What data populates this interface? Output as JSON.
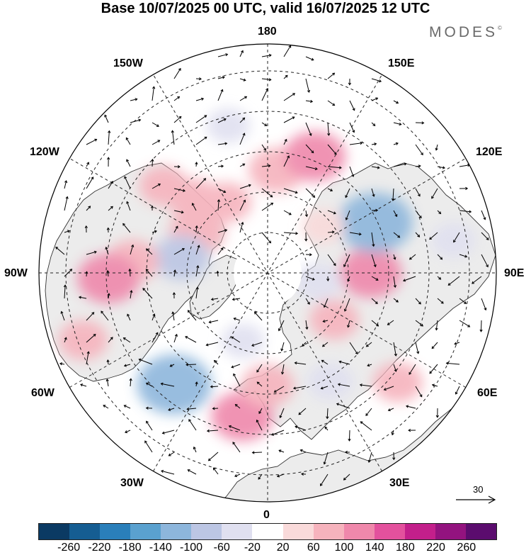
{
  "title": "Base 10/07/2025 00 UTC, valid 16/07/2025 12 UTC",
  "brand": "MODES",
  "brand_mark": "©",
  "longitude_labels": {
    "top": "180",
    "bottom": "0",
    "left": "90W",
    "right": "90E",
    "nw_upper": "150W",
    "nw_lower": "120W",
    "ne_upper": "150E",
    "ne_lower": "120E",
    "sw_upper": "60W",
    "sw_lower": "30W",
    "se_upper": "60E",
    "se_lower": "30E"
  },
  "reference_vector": {
    "label": "30"
  },
  "colorbar": {
    "colors": [
      "#0b3a63",
      "#155d92",
      "#2a7fba",
      "#5aa1cf",
      "#8db6dc",
      "#bcc6e4",
      "#e0e0f0",
      "#ffffff",
      "#f9dada",
      "#f6b3bd",
      "#ef88ab",
      "#e3519d",
      "#c31f8b",
      "#93137f",
      "#5b0c6e"
    ],
    "ticks": [
      "-260",
      "-220",
      "-180",
      "-140",
      "-100",
      "-60",
      "-20",
      "20",
      "60",
      "100",
      "140",
      "180",
      "220",
      "260"
    ]
  },
  "anomalies": [
    {
      "lon": 175,
      "lat": 55,
      "value": 80
    },
    {
      "lon": 158,
      "lat": 48,
      "value": 100
    },
    {
      "lon": -150,
      "lat": 62,
      "value": 60
    },
    {
      "lon": -135,
      "lat": 55,
      "value": 70
    },
    {
      "lon": -120,
      "lat": 62,
      "value": 80
    },
    {
      "lon": -130,
      "lat": 45,
      "value": 60
    },
    {
      "lon": -100,
      "lat": 60,
      "value": -80
    },
    {
      "lon": -95,
      "lat": 45,
      "value": 70
    },
    {
      "lon": -88,
      "lat": 38,
      "value": 100
    },
    {
      "lon": -70,
      "lat": 28,
      "value": 60
    },
    {
      "lon": -40,
      "lat": 42,
      "value": -140
    },
    {
      "lon": -10,
      "lat": 42,
      "value": 100
    },
    {
      "lon": 0,
      "lat": 52,
      "value": 70
    },
    {
      "lon": 30,
      "lat": 48,
      "value": -50
    },
    {
      "lon": 50,
      "lat": 35,
      "value": 60
    },
    {
      "lon": 55,
      "lat": 62,
      "value": 60
    },
    {
      "lon": 90,
      "lat": 55,
      "value": 100
    },
    {
      "lon": 115,
      "lat": 50,
      "value": -140
    },
    {
      "lon": 130,
      "lat": 65,
      "value": 40
    },
    {
      "lon": 80,
      "lat": 72,
      "value": -50
    },
    {
      "lon": -20,
      "lat": 65,
      "value": -40
    },
    {
      "lon": 100,
      "lat": 30,
      "value": -40
    },
    {
      "lon": -165,
      "lat": 40,
      "value": -40
    }
  ]
}
